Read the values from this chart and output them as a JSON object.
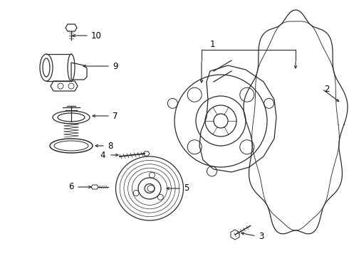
{
  "background_color": "#ffffff",
  "line_color": "#2a2a2a",
  "text_color": "#000000",
  "figsize": [
    4.9,
    3.6
  ],
  "dpi": 100,
  "label_fontsize": 8.5
}
